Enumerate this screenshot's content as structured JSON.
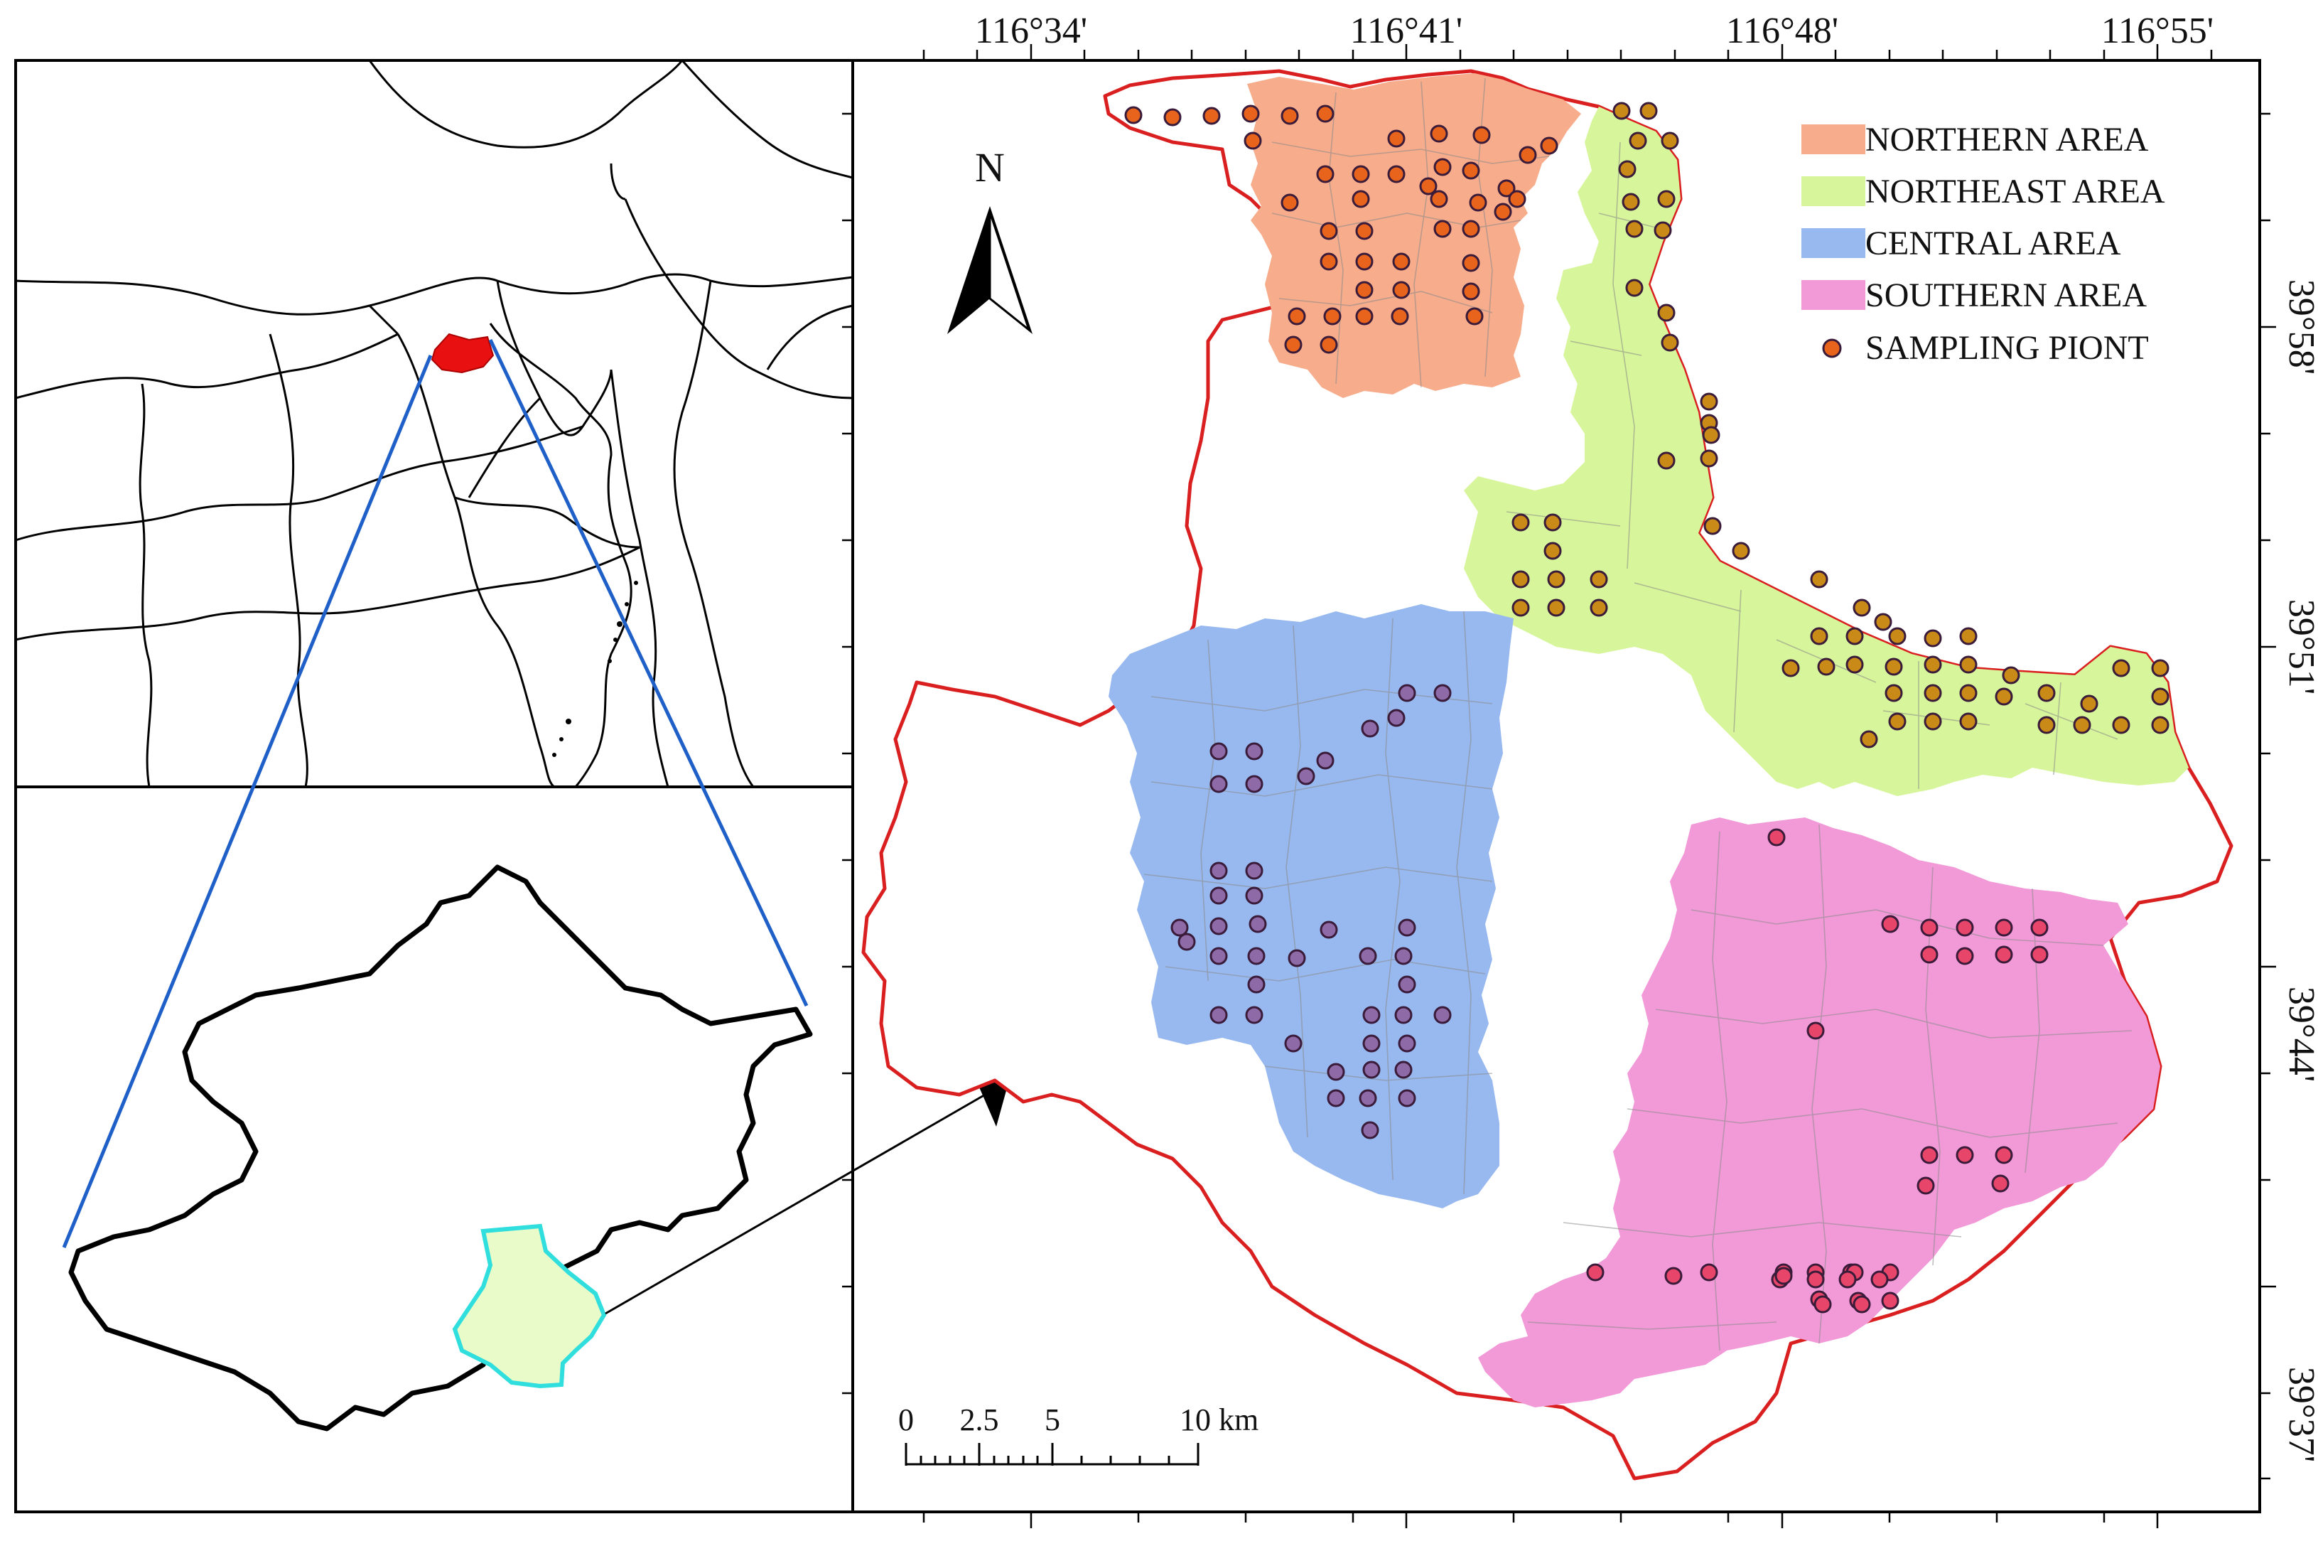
{
  "longitude_labels": [
    "116°34'",
    "116°41'",
    "116°48'",
    "116°55'"
  ],
  "latitude_labels": [
    "39°58'",
    "39°51'",
    "39°44'",
    "39°37'"
  ],
  "north_label": "N",
  "legend": [
    {
      "key": "northern",
      "label": "NORTHERN AREA",
      "color": "#f7ac8c"
    },
    {
      "key": "northeast",
      "label": "NORTHEAST AREA",
      "color": "#d7f59a"
    },
    {
      "key": "central",
      "label": "CENTRAL AREA",
      "color": "#98b9f0"
    },
    {
      "key": "southern",
      "label": "SOUTHERN AREA",
      "color": "#f29ad8"
    },
    {
      "key": "sampling",
      "label": "SAMPLING PIONT",
      "color": "#e8631c"
    }
  ],
  "scale_bar": {
    "ticks": [
      "0",
      "2.5",
      "5",
      "10 km"
    ]
  },
  "colors": {
    "study_boundary": "#d91f1f",
    "inset_lines": "#1f5fc8",
    "beijing_highlight": "#e81010",
    "district_fill": "#e8fbc8",
    "district_outline": "#30dede",
    "point_outline": "#3a1b3a"
  },
  "region_points": {
    "northern": {
      "fill": "#e8631c",
      "count": 43
    },
    "northeast": {
      "fill": "#c98a18",
      "count": 60
    },
    "central": {
      "fill": "#8e6aa6",
      "count": 42
    },
    "southern": {
      "fill": "#e8456a",
      "count": 34
    }
  }
}
